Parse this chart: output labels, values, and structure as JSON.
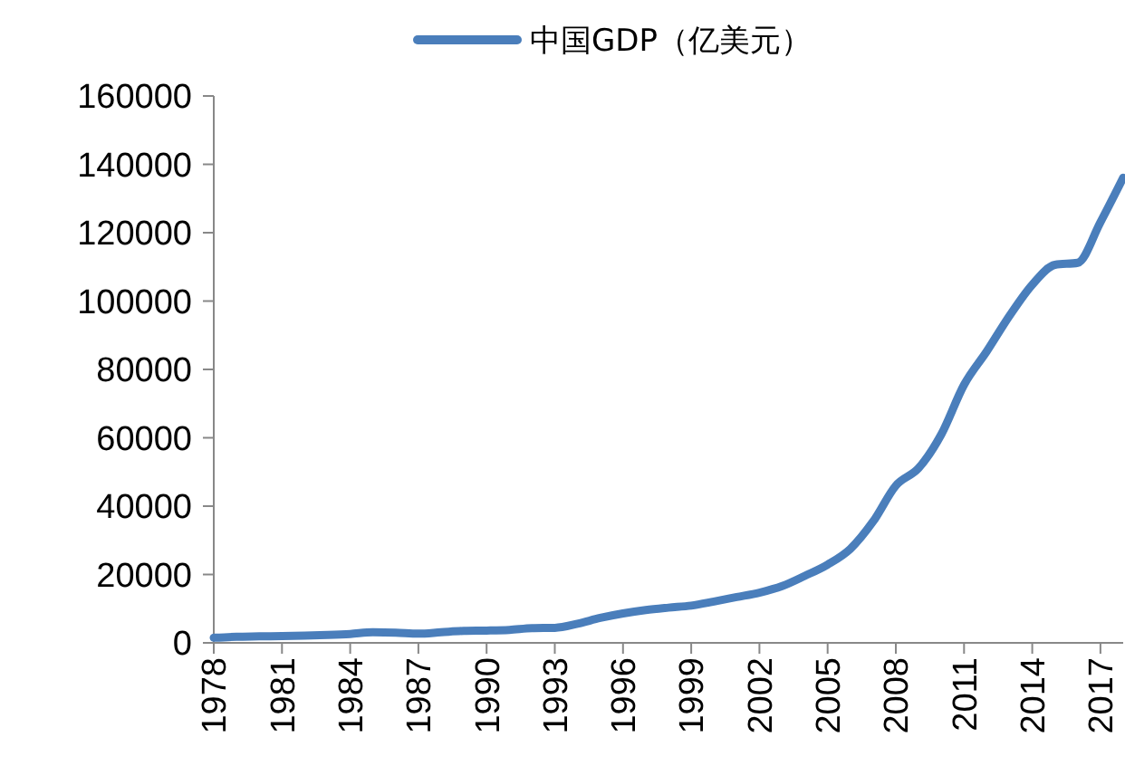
{
  "chart_data": {
    "type": "line",
    "categories": [
      "1978",
      null,
      null,
      "1981",
      null,
      null,
      "1984",
      null,
      null,
      "1987",
      null,
      null,
      "1990",
      null,
      null,
      "1993",
      null,
      null,
      "1996",
      null,
      null,
      "1999",
      null,
      null,
      "2002",
      null,
      null,
      "2005",
      null,
      null,
      "2008",
      null,
      null,
      "2011",
      null,
      null,
      "2014",
      null,
      null,
      "2017",
      null
    ],
    "series": [
      {
        "name": "中国GDP（亿美元）",
        "color": "#4a7ebb",
        "values": [
          1500,
          1800,
          1900,
          2000,
          2100,
          2300,
          2600,
          3100,
          3000,
          2700,
          3100,
          3500,
          3600,
          3800,
          4300,
          4400,
          5600,
          7300,
          8600,
          9600,
          10300,
          10900,
          12100,
          13400,
          14700,
          16600,
          19600,
          22900,
          27500,
          35500,
          46000,
          51100,
          61000,
          75500,
          85300,
          95700,
          104800,
          110600,
          111200,
          123100,
          136100
        ]
      }
    ],
    "ylim": [
      0,
      160000
    ],
    "yticks": [
      0,
      20000,
      40000,
      60000,
      80000,
      100000,
      120000,
      140000,
      160000
    ],
    "grid": false,
    "legend": "top",
    "marker": "none",
    "line_style": "solid"
  }
}
